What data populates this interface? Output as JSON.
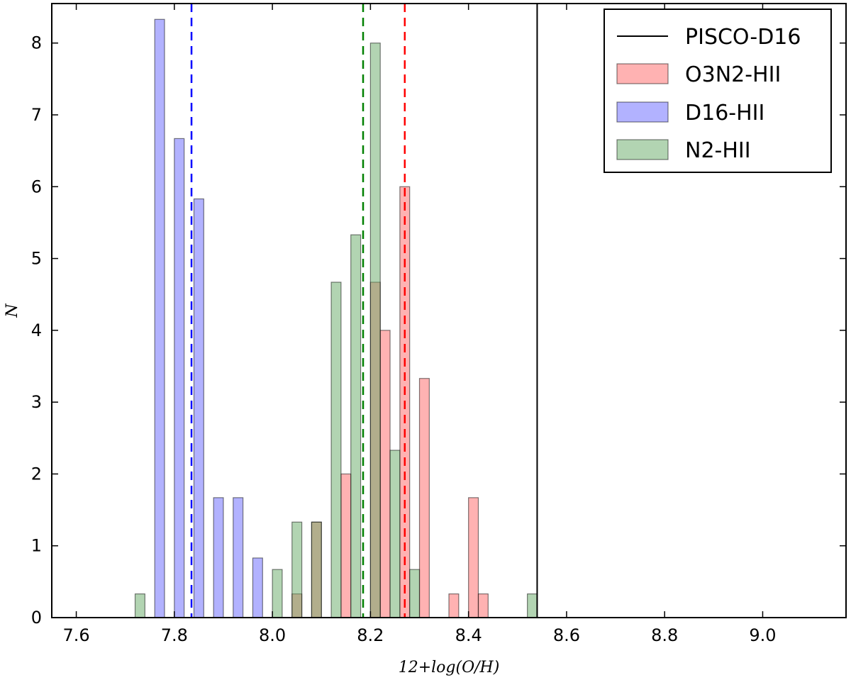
{
  "chart_data": {
    "type": "histogram",
    "title": "",
    "xlabel": "12+log(O/H)",
    "ylabel": "N",
    "xlim": [
      7.55,
      9.17
    ],
    "ylim": [
      0,
      8.55
    ],
    "xticks": [
      7.6,
      7.8,
      8.0,
      8.2,
      8.4,
      8.6,
      8.8,
      9.0
    ],
    "xtick_labels": [
      "7.6",
      "7.8",
      "8.0",
      "8.2",
      "8.4",
      "8.6",
      "8.8",
      "9.0"
    ],
    "yticks": [
      0,
      1,
      2,
      3,
      4,
      5,
      6,
      7,
      8
    ],
    "ytick_labels": [
      "0",
      "1",
      "2",
      "3",
      "4",
      "5",
      "6",
      "7",
      "8"
    ],
    "bin_width": 0.02,
    "series": [
      {
        "name": "O3N2-HII",
        "color": "#ff6666",
        "bins": [
          {
            "x0": 8.04,
            "value": 0.33
          },
          {
            "x0": 8.08,
            "value": 1.33
          },
          {
            "x0": 8.14,
            "value": 2.0
          },
          {
            "x0": 8.2,
            "value": 4.67
          },
          {
            "x0": 8.22,
            "value": 4.0
          },
          {
            "x0": 8.26,
            "value": 6.0
          },
          {
            "x0": 8.3,
            "value": 3.33
          },
          {
            "x0": 8.36,
            "value": 0.33
          },
          {
            "x0": 8.4,
            "value": 1.67
          },
          {
            "x0": 8.42,
            "value": 0.33
          }
        ],
        "mean_line": 8.27
      },
      {
        "name": "D16-HII",
        "color": "#6666ff",
        "bins": [
          {
            "x0": 7.76,
            "value": 8.33
          },
          {
            "x0": 7.8,
            "value": 6.67
          },
          {
            "x0": 7.84,
            "value": 5.83
          },
          {
            "x0": 7.88,
            "value": 1.67
          },
          {
            "x0": 7.92,
            "value": 1.67
          },
          {
            "x0": 7.96,
            "value": 0.83
          }
        ],
        "mean_line": 7.835
      },
      {
        "name": "N2-HII",
        "color": "#66aa66",
        "bins": [
          {
            "x0": 7.72,
            "value": 0.33
          },
          {
            "x0": 8.0,
            "value": 0.67
          },
          {
            "x0": 8.04,
            "value": 1.33
          },
          {
            "x0": 8.08,
            "value": 1.33
          },
          {
            "x0": 8.12,
            "value": 4.67
          },
          {
            "x0": 8.16,
            "value": 5.33
          },
          {
            "x0": 8.2,
            "value": 8.0
          },
          {
            "x0": 8.24,
            "value": 2.33
          },
          {
            "x0": 8.28,
            "value": 0.67
          },
          {
            "x0": 8.52,
            "value": 0.33
          }
        ],
        "mean_line": 8.185
      }
    ],
    "vertical_line": {
      "name": "PISCO-D16",
      "x": 8.54,
      "color": "#000000"
    },
    "legend": {
      "position": "top-right",
      "entries": [
        "PISCO-D16",
        "O3N2-HII",
        "D16-HII",
        "N2-HII"
      ]
    }
  }
}
